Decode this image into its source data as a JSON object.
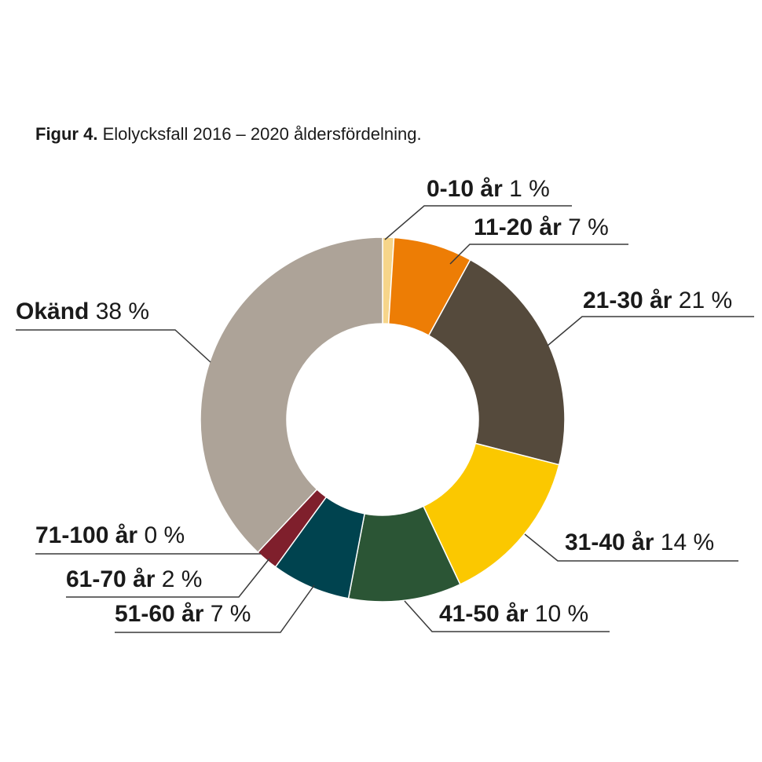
{
  "caption": {
    "label": "Figur 4.",
    "text": " Elolycksfall 2016 – 2020 åldersfördelning."
  },
  "chart_data": {
    "type": "pie",
    "donut": true,
    "slices": [
      {
        "category": "0-10 år",
        "value": 1,
        "value_label": "1 %",
        "color": "#f6d58a"
      },
      {
        "category": "11-20 år",
        "value": 7,
        "value_label": "7 %",
        "color": "#ed7d05"
      },
      {
        "category": "21-30 år",
        "value": 21,
        "value_label": "21 %",
        "color": "#554a3c"
      },
      {
        "category": "31-40 år",
        "value": 14,
        "value_label": "14 %",
        "color": "#fbc800"
      },
      {
        "category": "41-50 år",
        "value": 10,
        "value_label": "10 %",
        "color": "#2b5535"
      },
      {
        "category": "51-60 år",
        "value": 7,
        "value_label": "7 %",
        "color": "#00434f"
      },
      {
        "category": "61-70 år",
        "value": 2,
        "value_label": "2 %",
        "color": "#7f1f2c"
      },
      {
        "category": "71-100 år",
        "value": 0,
        "value_label": "0 %",
        "color": "#7f1f2c"
      },
      {
        "category": "Okänd",
        "value": 38,
        "value_label": "38 %",
        "color": "#ada398"
      }
    ]
  }
}
